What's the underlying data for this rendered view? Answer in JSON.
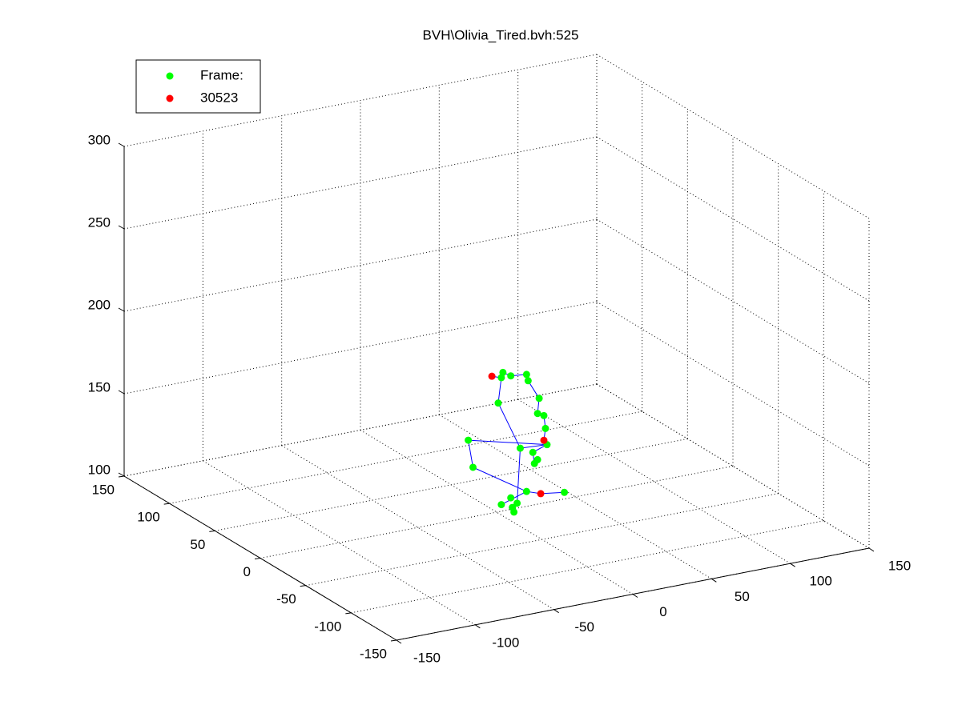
{
  "chart_data": {
    "type": "scatter3d",
    "title": "BVH\\Olivia_Tired.bvh:525",
    "xlim": [
      -150,
      150
    ],
    "xticks": [
      -150,
      -100,
      -50,
      0,
      50,
      100,
      150
    ],
    "ylim": [
      -150,
      150
    ],
    "yticks": [
      -150,
      -100,
      -50,
      0,
      50,
      100,
      150
    ],
    "zlim": [
      100,
      300
    ],
    "zticks": [
      100,
      150,
      200,
      250,
      300
    ],
    "grid": true,
    "legend": "upper left",
    "series": [
      {
        "name": "Frame:",
        "color": "#00ff00",
        "mode": "markers",
        "x": [
          4,
          3,
          9,
          19,
          20,
          1,
          27,
          26,
          30,
          31,
          32,
          15,
          23,
          26,
          24,
          -18,
          -15,
          19,
          43,
          9,
          3,
          10,
          13,
          11
        ],
        "y": [
          0,
          0,
          0,
          0,
          0,
          0,
          0,
          0,
          0,
          0,
          0,
          0,
          0,
          0,
          0,
          0,
          0,
          0,
          0,
          0,
          0,
          0,
          0,
          0
        ],
        "z": [
          184,
          181,
          181,
          180,
          176,
          166,
          164,
          155,
          153,
          145,
          135,
          136,
          132,
          127,
          125,
          147,
          130,
          109,
          104,
          107,
          104,
          101,
          103,
          98
        ]
      },
      {
        "name": "30523",
        "color": "#ff0000",
        "mode": "markers",
        "x": [
          -3,
          30,
          28
        ],
        "y": [
          0,
          0,
          0
        ],
        "z": [
          183,
          138,
          106
        ]
      },
      {
        "color": "#0000ff",
        "mode": "lines",
        "x": [
          -3,
          3,
          4,
          9,
          19,
          20,
          27,
          26,
          30,
          31,
          30,
          32,
          23,
          24,
          null,
          3,
          1,
          15,
          32,
          null,
          -18,
          32,
          null,
          -18,
          -15,
          19,
          28,
          43,
          null,
          15,
          13,
          10,
          null,
          19,
          3
        ],
        "y": [
          0,
          0,
          0,
          0,
          0,
          0,
          0,
          0,
          0,
          0,
          0,
          0,
          0,
          0,
          null,
          0,
          0,
          0,
          0,
          null,
          0,
          0,
          null,
          0,
          0,
          0,
          0,
          0,
          null,
          0,
          0,
          0,
          null,
          0,
          0
        ],
        "z": [
          183,
          181,
          184,
          181,
          180,
          176,
          164,
          155,
          153,
          145,
          138,
          135,
          132,
          125,
          null,
          181,
          166,
          136,
          135,
          null,
          147,
          135,
          null,
          147,
          130,
          109,
          106,
          104,
          null,
          136,
          103,
          101,
          null,
          109,
          104
        ]
      }
    ]
  }
}
